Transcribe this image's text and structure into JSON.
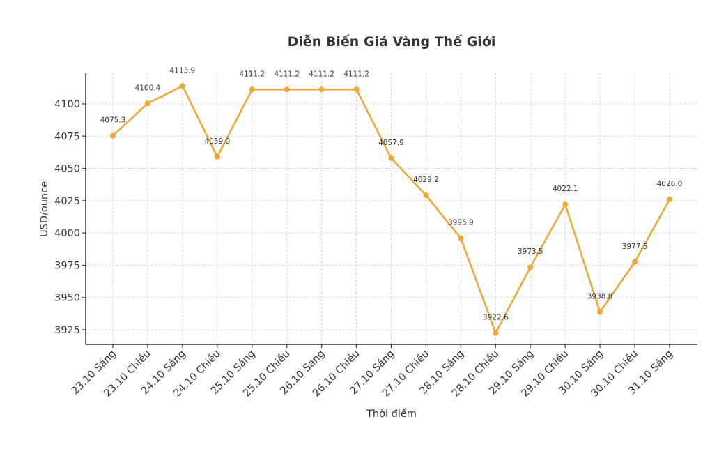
{
  "chart_data": {
    "type": "line",
    "title": "Diễn Biến Giá Vàng Thế Giới",
    "xlabel": "Thời điểm",
    "ylabel": "USD/ounce",
    "categories": [
      "23.10 Sáng",
      "23.10 Chiều",
      "24.10 Sáng",
      "24.10 Chiều",
      "25.10 Sáng",
      "25.10 Chiều",
      "26.10 Sáng",
      "26.10 Chiều",
      "27.10 Sáng",
      "27.10 Chiều",
      "28.10 Sáng",
      "28.10 Chiều",
      "29.10 Sáng",
      "29.10 Chiều",
      "30.10 Sáng",
      "30.10 Chiều",
      "31.10 Sáng"
    ],
    "series": [
      {
        "name": "Giá vàng",
        "color": "#F0A73A",
        "values": [
          4075.3,
          4100.4,
          4113.9,
          4059.0,
          4111.2,
          4111.2,
          4111.2,
          4111.2,
          4057.9,
          4029.2,
          3995.9,
          3922.6,
          3973.5,
          4022.1,
          3938.8,
          3977.5,
          4026.0
        ],
        "labels": [
          "4075.3",
          "4100.4",
          "4113.9",
          "4059.0",
          "4111.2",
          "4111.2",
          "4111.2",
          "4111.2",
          "4057.9",
          "4029.2",
          "3995.9",
          "3922.6",
          "3973.5",
          "4022.1",
          "3938.8",
          "3977.5",
          "4026.0"
        ]
      }
    ],
    "yticks": [
      3925,
      3950,
      3975,
      4000,
      4025,
      4050,
      4075,
      4100
    ],
    "ylim": [
      3913,
      4124
    ],
    "grid": true,
    "legend": null,
    "xtick_rotation": 45
  }
}
